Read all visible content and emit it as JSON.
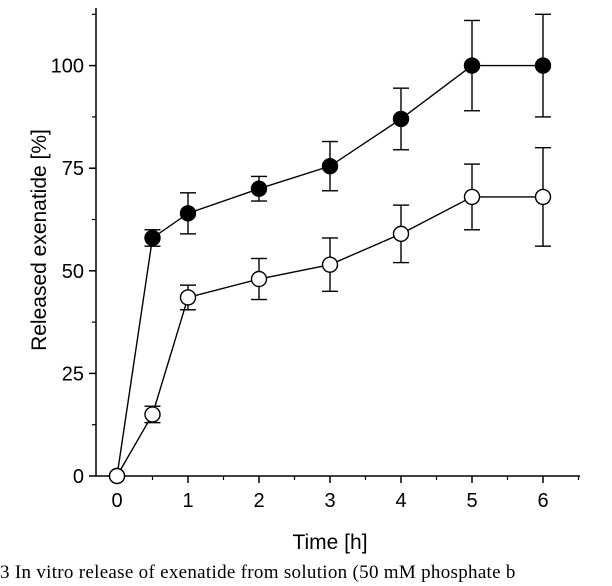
{
  "chart_data": {
    "type": "line",
    "xlabel": "Time [h]",
    "ylabel": "Released exenatide [%]",
    "xlim": [
      0,
      6.6
    ],
    "ylim": [
      0,
      115
    ],
    "xticks": [
      0,
      1,
      2,
      3,
      4,
      5,
      6
    ],
    "yticks": [
      0,
      25,
      50,
      75,
      100
    ],
    "grid": false,
    "legend": null,
    "series": [
      {
        "name": "filled circles",
        "marker": "filled-circle",
        "color": "#000000",
        "x": [
          0,
          0.5,
          1,
          2,
          3,
          4,
          5,
          6
        ],
        "y": [
          0,
          58,
          64,
          70,
          75.5,
          87,
          100,
          100
        ],
        "err": [
          0,
          2,
          5,
          3,
          6,
          7.5,
          11,
          12.5
        ]
      },
      {
        "name": "open circles",
        "marker": "open-circle",
        "color": "#000000",
        "x": [
          0,
          0.5,
          1,
          2,
          3,
          4,
          5,
          6
        ],
        "y": [
          0,
          15,
          43.5,
          48,
          51.5,
          59,
          68,
          68
        ],
        "err": [
          0,
          2,
          3,
          5,
          6.5,
          7,
          8,
          12
        ]
      }
    ]
  },
  "caption": "3 In vitro release of exenatide from solution (50 mM phosphate b"
}
